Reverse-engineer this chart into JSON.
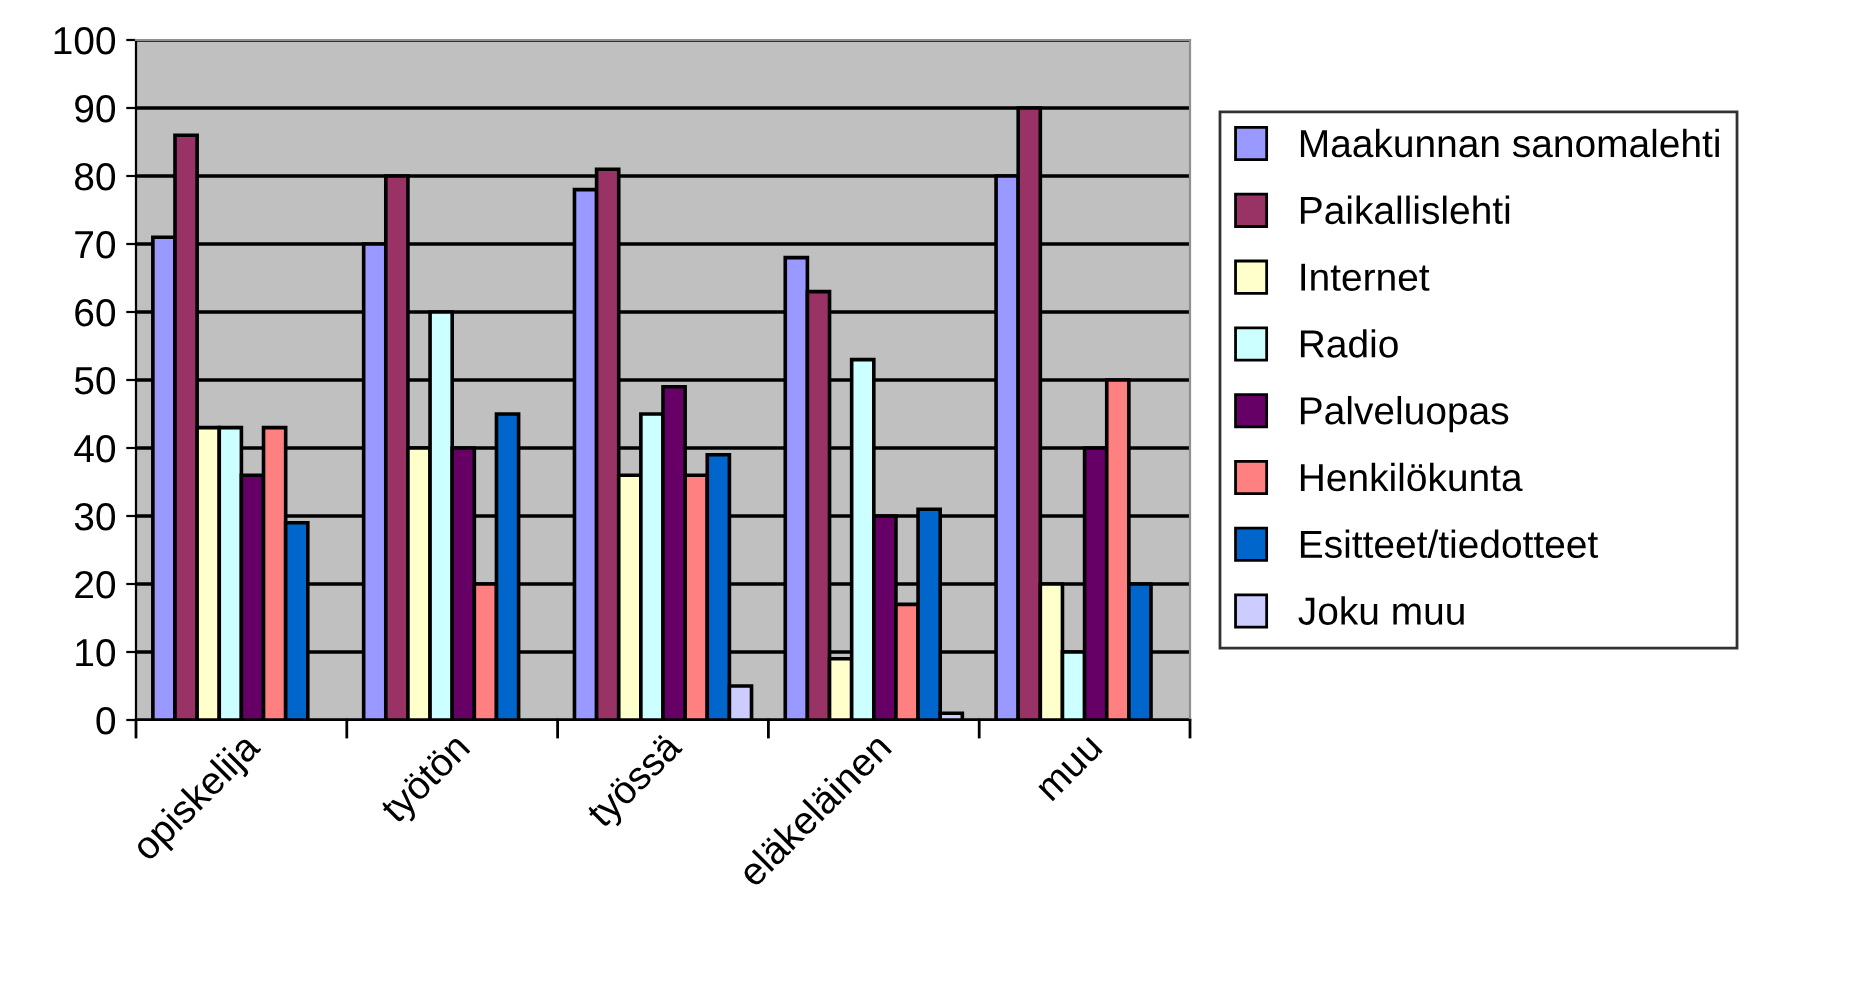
{
  "chart_data": {
    "type": "bar",
    "categories": [
      "opiskelija",
      "työtön",
      "työssä",
      "eläkeläinen",
      "muu"
    ],
    "series": [
      {
        "name": "Maakunnan sanomalehti",
        "color": "#9999ff",
        "values": [
          71,
          70,
          78,
          68,
          80
        ]
      },
      {
        "name": "Paikallislehti",
        "color": "#993366",
        "values": [
          86,
          80,
          81,
          63,
          90
        ]
      },
      {
        "name": "Internet",
        "color": "#ffffcc",
        "values": [
          43,
          40,
          36,
          9,
          20
        ]
      },
      {
        "name": "Radio",
        "color": "#ccffff",
        "values": [
          43,
          60,
          45,
          53,
          10
        ]
      },
      {
        "name": "Palveluopas",
        "color": "#660066",
        "values": [
          36,
          40,
          49,
          30,
          40
        ]
      },
      {
        "name": "Henkilökunta",
        "color": "#ff8080",
        "values": [
          43,
          20,
          36,
          17,
          50
        ]
      },
      {
        "name": "Esitteet/tiedotteet",
        "color": "#0066cc",
        "values": [
          29,
          45,
          39,
          31,
          20
        ]
      },
      {
        "name": "Joku muu",
        "color": "#ccccff",
        "values": [
          null,
          null,
          5,
          1,
          null
        ]
      }
    ],
    "ylim": [
      0,
      100
    ],
    "yticks": [
      0,
      10,
      20,
      30,
      40,
      50,
      60,
      70,
      80,
      90,
      100
    ],
    "grid": "y",
    "legend": "right"
  }
}
